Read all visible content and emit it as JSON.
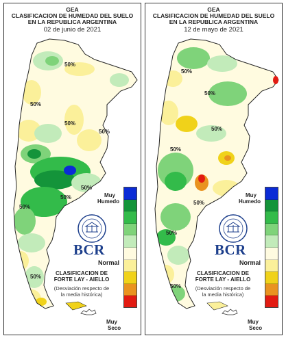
{
  "scale_colors": [
    "#0b2bd6",
    "#14943a",
    "#33bb4a",
    "#7fd37a",
    "#c2ebba",
    "#fffbe0",
    "#fbf09a",
    "#f0d21a",
    "#e99320",
    "#e21b12"
  ],
  "panels": [
    {
      "header": {
        "line1": "GEA",
        "line2": "CLASIFICACION DE HUMEDAD DEL SUELO",
        "line3": "EN LA REPUBLICA ARGENTINA",
        "date": "02 de junio de 2021"
      },
      "contour_labels": [
        "50%",
        "50%",
        "50%",
        "50%",
        "50%",
        "50%",
        "50%",
        "50%"
      ],
      "legend": {
        "muy_humedo_1": "Muy",
        "muy_humedo_2": "Humedo",
        "normal": "Normal",
        "muy_seco_1": "Muy",
        "muy_seco_2": "Seco"
      },
      "brand": "BCR",
      "method_1": "CLASIFICACION DE",
      "method_2": "FORTE LAY - AIELLO",
      "note_1": "(Desviación respecto de",
      "note_2": "la media histórica)"
    },
    {
      "header": {
        "line1": "GEA",
        "line2": "CLASIFICACION DE HUMEDAD DEL SUELO",
        "line3": "EN LA REPUBLICA ARGENTINA",
        "date": "12 de mayo de 2021"
      },
      "contour_labels": [
        "50%",
        "50%",
        "50%",
        "50%",
        "50%",
        "50%",
        "50%"
      ],
      "legend": {
        "muy_humedo_1": "Muy",
        "muy_humedo_2": "Humedo",
        "normal": "Normal",
        "muy_seco_1": "Muy",
        "muy_seco_2": "Seco"
      },
      "brand": "BCR",
      "method_1": "CLASIFICACION DE",
      "method_2": "FORTE LAY - AIELLO",
      "note_1": "(Desviación respecto de",
      "note_2": "la media histórica)"
    }
  ]
}
